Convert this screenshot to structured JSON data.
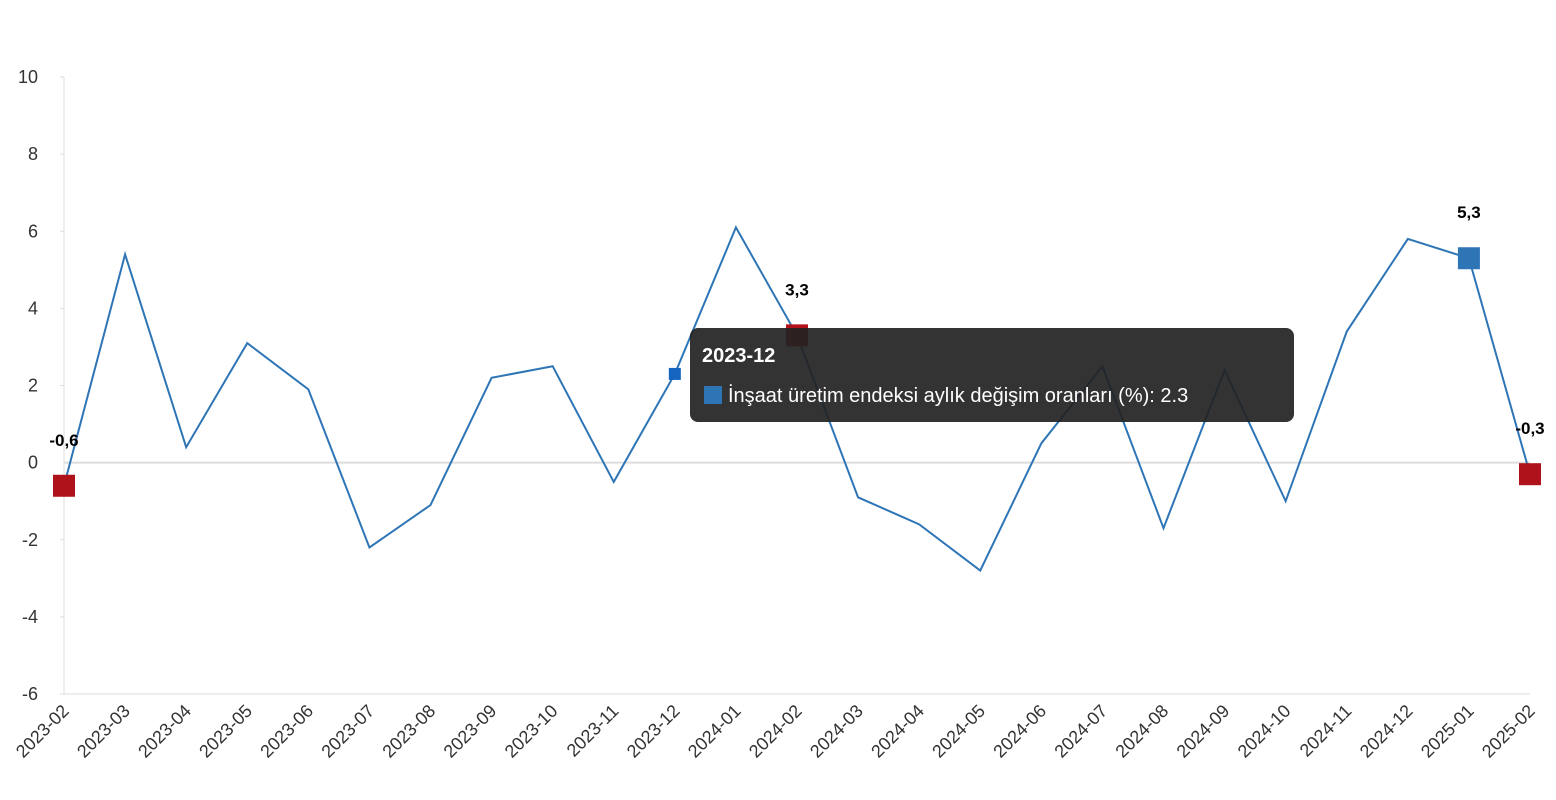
{
  "chart_data": {
    "type": "line",
    "categories": [
      "2023-02",
      "2023-03",
      "2023-04",
      "2023-05",
      "2023-06",
      "2023-07",
      "2023-08",
      "2023-09",
      "2023-10",
      "2023-11",
      "2023-12",
      "2024-01",
      "2024-02",
      "2024-03",
      "2024-04",
      "2024-05",
      "2024-06",
      "2024-07",
      "2024-08",
      "2024-09",
      "2024-10",
      "2024-11",
      "2024-12",
      "2025-01",
      "2025-02"
    ],
    "series": [
      {
        "name": "İnşaat üretim endeksi aylık değişim oranları (%)",
        "color": "#2e75b6",
        "values": [
          -0.6,
          5.4,
          0.4,
          3.1,
          1.9,
          -2.2,
          -1.1,
          2.2,
          2.5,
          -0.5,
          2.3,
          6.1,
          3.3,
          -0.9,
          -1.6,
          -2.8,
          0.5,
          2.5,
          -1.7,
          2.4,
          -1.0,
          3.4,
          5.8,
          5.3,
          -0.3
        ],
        "value_labels": [
          "-0,6",
          null,
          null,
          null,
          null,
          null,
          null,
          null,
          null,
          null,
          null,
          null,
          "3,3",
          null,
          null,
          null,
          null,
          null,
          null,
          null,
          null,
          null,
          null,
          "5,3",
          "-0,3"
        ],
        "marker_colors": [
          "#b0121b",
          null,
          null,
          null,
          null,
          null,
          null,
          null,
          null,
          null,
          null,
          null,
          "#b0121b",
          null,
          null,
          null,
          null,
          null,
          null,
          null,
          null,
          null,
          null,
          "#2e75b6",
          "#b0121b"
        ]
      }
    ],
    "ylim": [
      -6,
      10
    ],
    "yticks": [
      -6,
      -4,
      -2,
      0,
      2,
      4,
      6,
      8,
      10
    ],
    "tooltip": {
      "index": 10
    }
  }
}
